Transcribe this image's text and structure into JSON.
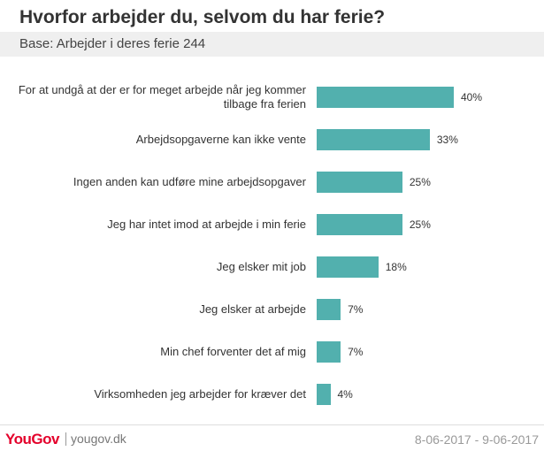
{
  "chart_data": {
    "type": "bar",
    "orientation": "horizontal",
    "title": "Hvorfor arbejder du, selvom du har ferie?",
    "subtitle": "Base: Arbejder i deres ferie 244",
    "categories": [
      "For at undgå at der er for meget arbejde når jeg kommer tilbage fra ferien",
      "Arbejdsopgaverne kan ikke vente",
      "Ingen anden kan udføre mine arbejdsopgaver",
      "Jeg har intet imod at arbejde i min ferie",
      "Jeg elsker mit job",
      "Jeg elsker at arbejde",
      "Min chef forventer det af mig",
      "Virksomheden jeg arbejder for kræver det"
    ],
    "values": [
      40,
      33,
      25,
      25,
      18,
      7,
      7,
      4
    ],
    "value_labels": [
      "40%",
      "33%",
      "25%",
      "25%",
      "18%",
      "7%",
      "7%",
      "4%"
    ],
    "color": "#52b0ae"
  },
  "footer": {
    "brand": "YouGov",
    "site": "yougov.dk",
    "date": "8-06-2017 - 9-06-2017"
  }
}
